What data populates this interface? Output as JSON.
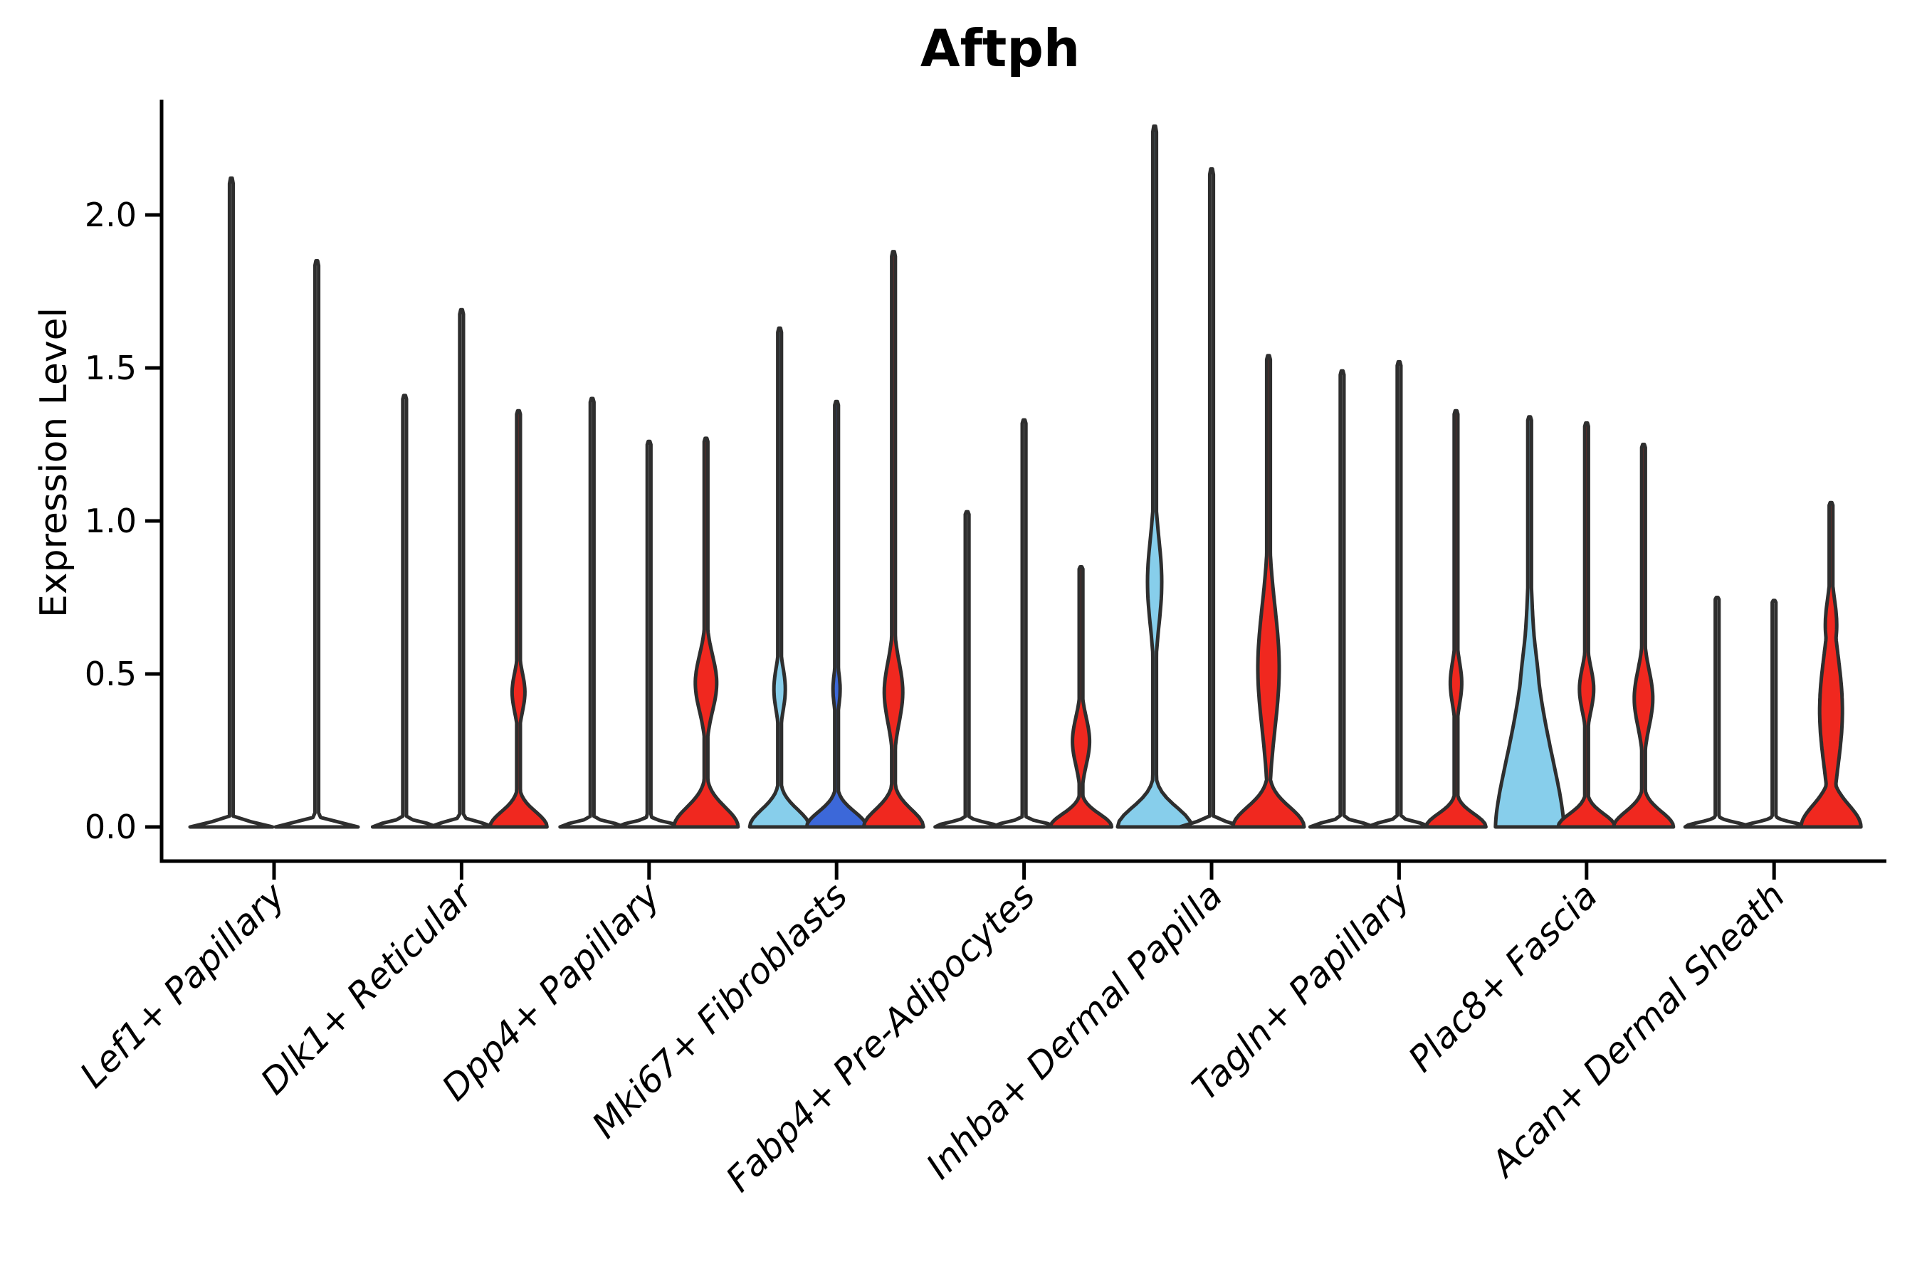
{
  "chart_data": {
    "type": "violin",
    "title": "Aftph",
    "ylabel": "Expression Level",
    "xlabel": "",
    "grid": false,
    "legend": "none",
    "ylim": [
      -0.08,
      2.38
    ],
    "ytick_values": [
      0.0,
      0.5,
      1.0,
      1.5,
      2.0
    ],
    "ytick_labels": [
      "0.0",
      "0.5",
      "1.0",
      "1.5",
      "2.0"
    ],
    "categories": [
      "Lef1+ Papillary",
      "Dlk1+ Reticular",
      "Dpp4+ Papillary",
      "Mki67+ Fibroblasts",
      "Fabp4+ Pre-Adipocytes",
      "Inhba+ Dermal Papilla",
      "Tagln+ Papillary",
      "Plac8+ Fascia",
      "Acan+ Dermal Sheath"
    ],
    "colors": {
      "white": "#ffffff",
      "red": "#f0281f",
      "skyblue": "#87ceeb",
      "blue": "#3c68d9",
      "outline": "#2e2e2e",
      "axis": "#000000"
    },
    "groups": [
      {
        "category": "Lef1+ Papillary",
        "violins": [
          {
            "offset": -60,
            "color": "white",
            "max": 2.12,
            "base": {
              "hw": 58,
              "wb": 0.02
            },
            "bumps": []
          },
          {
            "offset": 60,
            "color": "white",
            "max": 1.85,
            "base": {
              "hw": 58,
              "wb": 0.02
            },
            "bumps": []
          }
        ]
      },
      {
        "category": "Dlk1+ Reticular",
        "violins": [
          {
            "offset": -80,
            "color": "white",
            "max": 1.41,
            "base": {
              "hw": 45,
              "wb": 0.02
            },
            "bumps": []
          },
          {
            "offset": 0,
            "color": "white",
            "max": 1.69,
            "base": {
              "hw": 45,
              "wb": 0.02
            },
            "bumps": []
          },
          {
            "offset": 80,
            "color": "red",
            "max": 1.36,
            "base": {
              "hw": 40,
              "wb": 0.07
            },
            "bumps": [
              {
                "c": 0.44,
                "w": 0.09,
                "hw": 9
              }
            ]
          }
        ]
      },
      {
        "category": "Dpp4+ Papillary",
        "violins": [
          {
            "offset": -80,
            "color": "white",
            "max": 1.4,
            "base": {
              "hw": 45,
              "wb": 0.02
            },
            "bumps": []
          },
          {
            "offset": 0,
            "color": "white",
            "max": 1.26,
            "base": {
              "hw": 45,
              "wb": 0.02
            },
            "bumps": []
          },
          {
            "offset": 80,
            "color": "red",
            "max": 1.27,
            "base": {
              "hw": 45,
              "wb": 0.09
            },
            "bumps": [
              {
                "c": 0.47,
                "w": 0.13,
                "hw": 15
              }
            ]
          }
        ]
      },
      {
        "category": "Mki67+ Fibroblasts",
        "violins": [
          {
            "offset": -80,
            "color": "skyblue",
            "max": 1.63,
            "base": {
              "hw": 42,
              "wb": 0.08
            },
            "bumps": [
              {
                "c": 0.45,
                "w": 0.1,
                "hw": 8
              }
            ]
          },
          {
            "offset": 0,
            "color": "blue",
            "max": 1.39,
            "base": {
              "hw": 42,
              "wb": 0.07
            },
            "bumps": [
              {
                "c": 0.45,
                "w": 0.08,
                "hw": 5
              }
            ]
          },
          {
            "offset": 80,
            "color": "red",
            "max": 1.88,
            "base": {
              "hw": 42,
              "wb": 0.08
            },
            "bumps": [
              {
                "c": 0.44,
                "w": 0.14,
                "hw": 13
              }
            ]
          }
        ]
      },
      {
        "category": "Fabp4+ Pre-Adipocytes",
        "violins": [
          {
            "offset": -80,
            "color": "white",
            "max": 1.03,
            "base": {
              "hw": 45,
              "wb": 0.02
            },
            "bumps": []
          },
          {
            "offset": 0,
            "color": "white",
            "max": 1.33,
            "base": {
              "hw": 45,
              "wb": 0.02
            },
            "bumps": []
          },
          {
            "offset": 80,
            "color": "red",
            "max": 0.85,
            "base": {
              "hw": 43,
              "wb": 0.06
            },
            "bumps": [
              {
                "c": 0.28,
                "w": 0.11,
                "hw": 12
              }
            ]
          }
        ]
      },
      {
        "category": "Inhba+ Dermal Papilla",
        "violins": [
          {
            "offset": -80,
            "color": "skyblue",
            "max": 2.29,
            "base": {
              "hw": 52,
              "wb": 0.09
            },
            "bumps": [
              {
                "c": 0.8,
                "w": 0.2,
                "hw": 10
              }
            ]
          },
          {
            "offset": 0,
            "color": "white",
            "max": 2.15,
            "base": {
              "hw": 45,
              "wb": 0.02
            },
            "bumps": []
          },
          {
            "offset": 80,
            "color": "red",
            "max": 1.54,
            "base": {
              "hw": 50,
              "wb": 0.09
            },
            "bumps": [
              {
                "c": 0.52,
                "w": 0.28,
                "hw": 15
              }
            ]
          }
        ]
      },
      {
        "category": "Tagln+ Papillary",
        "violins": [
          {
            "offset": -80,
            "color": "white",
            "max": 1.49,
            "base": {
              "hw": 45,
              "wb": 0.02
            },
            "bumps": []
          },
          {
            "offset": 0,
            "color": "white",
            "max": 1.52,
            "base": {
              "hw": 45,
              "wb": 0.02
            },
            "bumps": []
          },
          {
            "offset": 80,
            "color": "red",
            "max": 1.36,
            "base": {
              "hw": 42,
              "wb": 0.06
            },
            "bumps": [
              {
                "c": 0.47,
                "w": 0.1,
                "hw": 8
              }
            ]
          }
        ]
      },
      {
        "category": "Plac8+ Fascia",
        "violins": [
          {
            "offset": -80,
            "color": "skyblue",
            "max": 1.34,
            "base": {
              "hw": 48,
              "wb": 0.4,
              "exp": 1.6
            },
            "bumps": [
              {
                "c": 0.38,
                "w": 0.26,
                "hw": 15
              }
            ]
          },
          {
            "offset": 0,
            "color": "red",
            "max": 1.32,
            "base": {
              "hw": 40,
              "wb": 0.06
            },
            "bumps": [
              {
                "c": 0.45,
                "w": 0.1,
                "hw": 10
              }
            ]
          },
          {
            "offset": 80,
            "color": "red",
            "max": 1.25,
            "base": {
              "hw": 42,
              "wb": 0.07
            },
            "bumps": [
              {
                "c": 0.42,
                "w": 0.13,
                "hw": 13
              }
            ]
          }
        ]
      },
      {
        "category": "Acan+ Dermal Sheath",
        "violins": [
          {
            "offset": -80,
            "color": "white",
            "max": 0.75,
            "base": {
              "hw": 45,
              "wb": 0.02
            },
            "bumps": []
          },
          {
            "offset": 0,
            "color": "white",
            "max": 0.74,
            "base": {
              "hw": 45,
              "wb": 0.02
            },
            "bumps": []
          },
          {
            "offset": 80,
            "color": "red",
            "max": 1.06,
            "base": {
              "hw": 42,
              "wb": 0.1
            },
            "bumps": [
              {
                "c": 0.38,
                "w": 0.26,
                "hw": 16
              },
              {
                "c": 0.66,
                "w": 0.12,
                "hw": 8
              }
            ]
          }
        ]
      }
    ]
  }
}
